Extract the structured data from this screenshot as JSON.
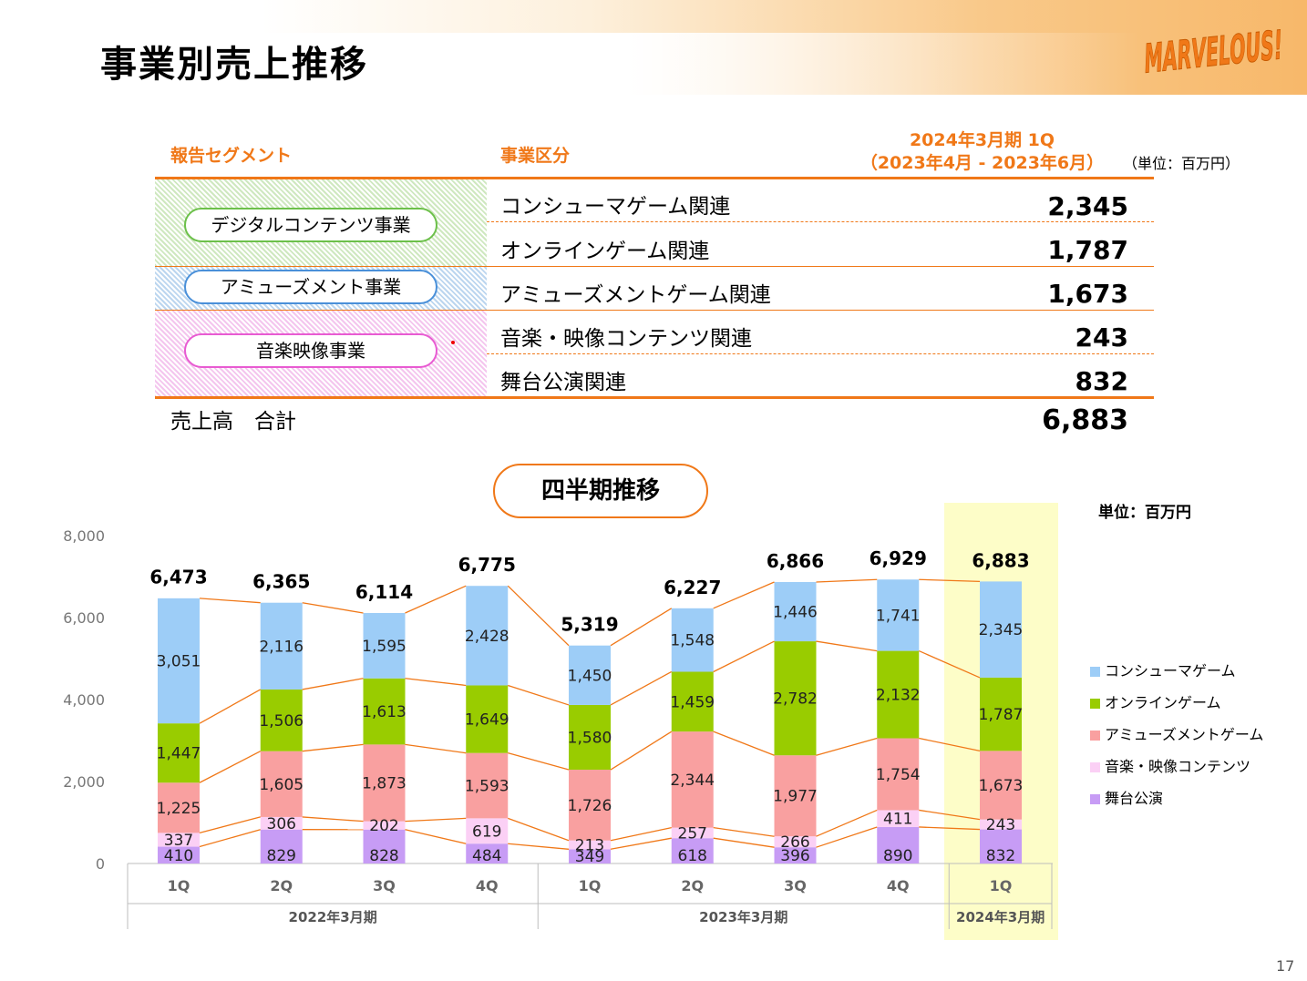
{
  "page": {
    "title": "事業別売上推移",
    "page_number": "17",
    "logo_text": "MARVELOUS!"
  },
  "segment_table": {
    "header_segment": "報告セグメント",
    "header_business": "事業区分",
    "period_line1": "2024年3月期 1Q",
    "period_line2": "（2023年4月 - 2023年6月）",
    "unit": "（単位：百万円）",
    "segments": [
      {
        "name": "デジタルコンテンツ事業",
        "color": "#6cc04a"
      },
      {
        "name": "アミューズメント事業",
        "color": "#4a90d9"
      },
      {
        "name": "音楽映像事業",
        "color": "#e85bd2"
      }
    ],
    "rows": [
      {
        "label": "コンシューマゲーム関連",
        "value": "2,345"
      },
      {
        "label": "オンラインゲーム関連",
        "value": "1,787"
      },
      {
        "label": "アミューズメントゲーム関連",
        "value": "1,673"
      },
      {
        "label": "音楽・映像コンテンツ関連",
        "value": "243"
      },
      {
        "label": "舞台公演関連",
        "value": "832"
      }
    ],
    "total_label": "売上高　合計",
    "total_value": "6,883"
  },
  "chart_title": "四半期推移",
  "chart_unit": "単位：百万円",
  "chart_data": {
    "type": "bar",
    "stacked": true,
    "categories": [
      "1Q",
      "2Q",
      "3Q",
      "4Q",
      "1Q",
      "2Q",
      "3Q",
      "4Q",
      "1Q"
    ],
    "groups": [
      {
        "label": "2022年3月期",
        "count": 4
      },
      {
        "label": "2023年3月期",
        "count": 4
      },
      {
        "label": "2024年3月期",
        "count": 1
      }
    ],
    "highlight_index": 8,
    "highlight_color": "#fdfdc8",
    "ylim": [
      0,
      8000
    ],
    "yticks": [
      0,
      2000,
      4000,
      6000,
      8000
    ],
    "ytick_labels": [
      "0",
      "2,000",
      "4,000",
      "6,000",
      "8,000"
    ],
    "series": [
      {
        "name": "舞台公演",
        "color": "#c79cf5",
        "values": [
          410,
          829,
          828,
          484,
          349,
          618,
          396,
          890,
          832
        ],
        "labels": [
          "410",
          "829",
          "828",
          "484",
          "349",
          "618",
          "396",
          "890",
          "832"
        ]
      },
      {
        "name": "音楽・映像コンテンツ",
        "color": "#fbd0f5",
        "values": [
          337,
          306,
          202,
          619,
          213,
          257,
          266,
          411,
          243
        ],
        "labels": [
          "337",
          "306",
          "202",
          "619",
          "213",
          "257",
          "266",
          "411",
          "243"
        ]
      },
      {
        "name": "アミューズメントゲーム",
        "color": "#f9a0a0",
        "values": [
          1225,
          1605,
          1873,
          1593,
          1726,
          2344,
          1977,
          1754,
          1673
        ],
        "labels": [
          "1,225",
          "1,605",
          "1,873",
          "1,593",
          "1,726",
          "2,344",
          "1,977",
          "1,754",
          "1,673"
        ]
      },
      {
        "name": "オンラインゲーム",
        "color": "#99cc00",
        "values": [
          1447,
          1506,
          1613,
          1649,
          1580,
          1459,
          2782,
          2132,
          1787
        ],
        "labels": [
          "1,447",
          "1,506",
          "1,613",
          "1,649",
          "1,580",
          "1,459",
          "2,782",
          "2,132",
          "1,787"
        ]
      },
      {
        "name": "コンシューマゲーム",
        "color": "#9dcdf7",
        "values": [
          3051,
          2116,
          1595,
          2428,
          1450,
          1548,
          1446,
          1741,
          2345
        ],
        "labels": [
          "3,051",
          "2,116",
          "1,595",
          "2,428",
          "1,450",
          "1,548",
          "1,446",
          "1,741",
          "2,345"
        ]
      }
    ],
    "totals": [
      6473,
      6365,
      6114,
      6775,
      5319,
      6227,
      6866,
      6929,
      6883
    ],
    "total_labels": [
      "6,473",
      "6,365",
      "6,114",
      "6,775",
      "5,319",
      "6,227",
      "6,866",
      "6,929",
      "6,883"
    ],
    "connector_color": "#f07818",
    "legend_order": [
      "コンシューマゲーム",
      "オンラインゲーム",
      "アミューズメントゲーム",
      "音楽・映像コンテンツ",
      "舞台公演"
    ],
    "legend_placement": "right"
  }
}
